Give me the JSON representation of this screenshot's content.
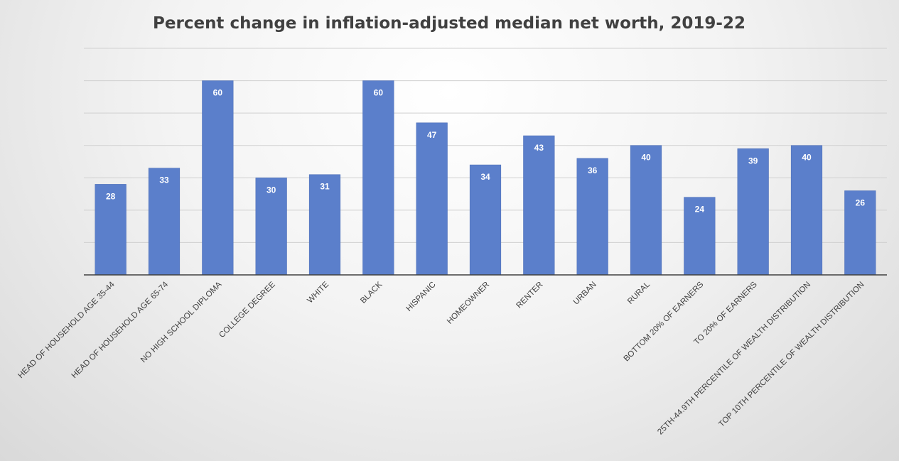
{
  "chart_data": {
    "type": "bar",
    "title": "Percent change in inflation-adjusted median net worth, 2019-22",
    "categories": [
      "HEAD OF HOUSEHOLD AGE 35-44",
      "HEAD OF HOUSEHOLD AGE 65-74",
      "NO HIGH SCHOOL DIPLOMA",
      "COLLEGE DEGREE",
      "WHITE",
      "BLACK",
      "HISPANIC",
      "HOMEOWNER",
      "RENTER",
      "URBAN",
      "RURAL",
      "BOTTOM 20% OF EARNERS",
      "TO 20% OF EARNERS",
      "25TH-44.9TH PERCENTILE OF WEALTH DISTRIBUTION",
      "TOP 10TH PERCENTILE OF WEALTH DISTRIBUTION"
    ],
    "values": [
      28,
      33,
      60,
      30,
      31,
      60,
      47,
      34,
      43,
      36,
      40,
      24,
      39,
      40,
      26
    ],
    "ylim": [
      0,
      70
    ],
    "gridlines": [
      10,
      20,
      30,
      40,
      50,
      60,
      70
    ],
    "grid": true,
    "bar_color": "#5b7fcb",
    "data_labels": true
  }
}
